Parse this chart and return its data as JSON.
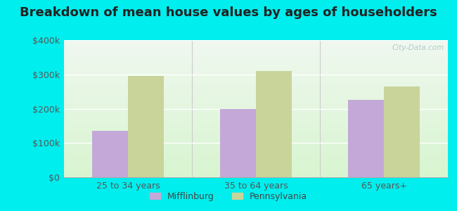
{
  "title": "Breakdown of mean house values by ages of householders",
  "categories": [
    "25 to 34 years",
    "35 to 64 years",
    "65 years+"
  ],
  "series": [
    {
      "name": "Mifflinburg",
      "values": [
        135000,
        200000,
        225000
      ],
      "color": "#c4a8d8"
    },
    {
      "name": "Pennsylvania",
      "values": [
        295000,
        310000,
        265000
      ],
      "color": "#c8d49a"
    }
  ],
  "ylim": [
    0,
    400000
  ],
  "yticks": [
    0,
    100000,
    200000,
    300000,
    400000
  ],
  "ytick_labels": [
    "$0",
    "$100k",
    "$200k",
    "$300k",
    "$400k"
  ],
  "outer_bg": "#00eeee",
  "plot_bg_bottom": "#d8f5d0",
  "plot_bg_top": "#f0f8f0",
  "title_fontsize": 13,
  "tick_fontsize": 9,
  "legend_fontsize": 9,
  "bar_width": 0.28
}
